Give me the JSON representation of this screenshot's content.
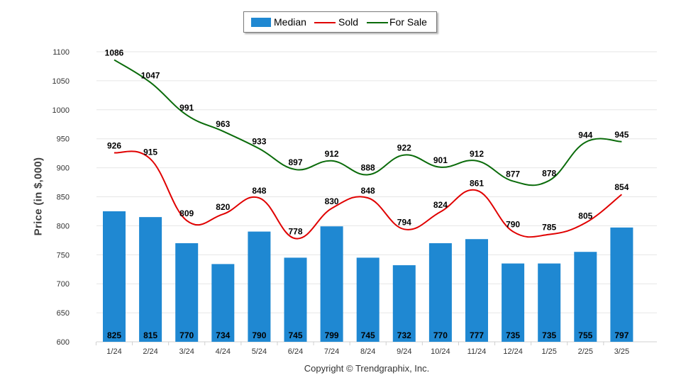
{
  "legend": {
    "median_label": "Median",
    "sold_label": "Sold",
    "for_sale_label": "For Sale"
  },
  "copyright": "Copyright © Trendgraphix, Inc.",
  "colors": {
    "median": "#1f88d2",
    "sold": "#e00000",
    "for_sale": "#0a6b0a",
    "grid": "#e6e6e6"
  },
  "chart_data": {
    "type": "bar",
    "ylabel": "Price (in $,000)",
    "xlabel": "",
    "title": "",
    "ylim": [
      600,
      1100
    ],
    "yticks": [
      600,
      650,
      700,
      750,
      800,
      850,
      900,
      950,
      1000,
      1050,
      1100
    ],
    "grid": true,
    "legend_position": "top-center",
    "categories": [
      "1/24",
      "2/24",
      "3/24",
      "4/24",
      "5/24",
      "6/24",
      "7/24",
      "8/24",
      "9/24",
      "10/24",
      "11/24",
      "12/24",
      "1/25",
      "2/25",
      "3/25"
    ],
    "series": [
      {
        "name": "Median",
        "type": "bar",
        "values": [
          825,
          815,
          770,
          734,
          790,
          745,
          799,
          745,
          732,
          770,
          777,
          735,
          735,
          755,
          797
        ]
      },
      {
        "name": "Sold",
        "type": "line",
        "values": [
          926,
          915,
          809,
          820,
          848,
          778,
          830,
          848,
          794,
          824,
          861,
          790,
          785,
          805,
          854
        ]
      },
      {
        "name": "For Sale",
        "type": "line",
        "values": [
          1086,
          1047,
          991,
          963,
          933,
          897,
          912,
          888,
          922,
          901,
          912,
          877,
          878,
          944,
          945
        ]
      }
    ]
  }
}
